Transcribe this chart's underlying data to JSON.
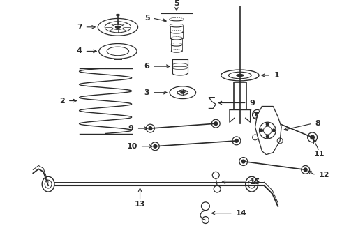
{
  "background_color": "#ffffff",
  "line_color": "#2a2a2a",
  "figsize": [
    4.9,
    3.6
  ],
  "dpi": 100,
  "layout": {
    "xlim": [
      0,
      490
    ],
    "ylim": [
      0,
      360
    ]
  }
}
